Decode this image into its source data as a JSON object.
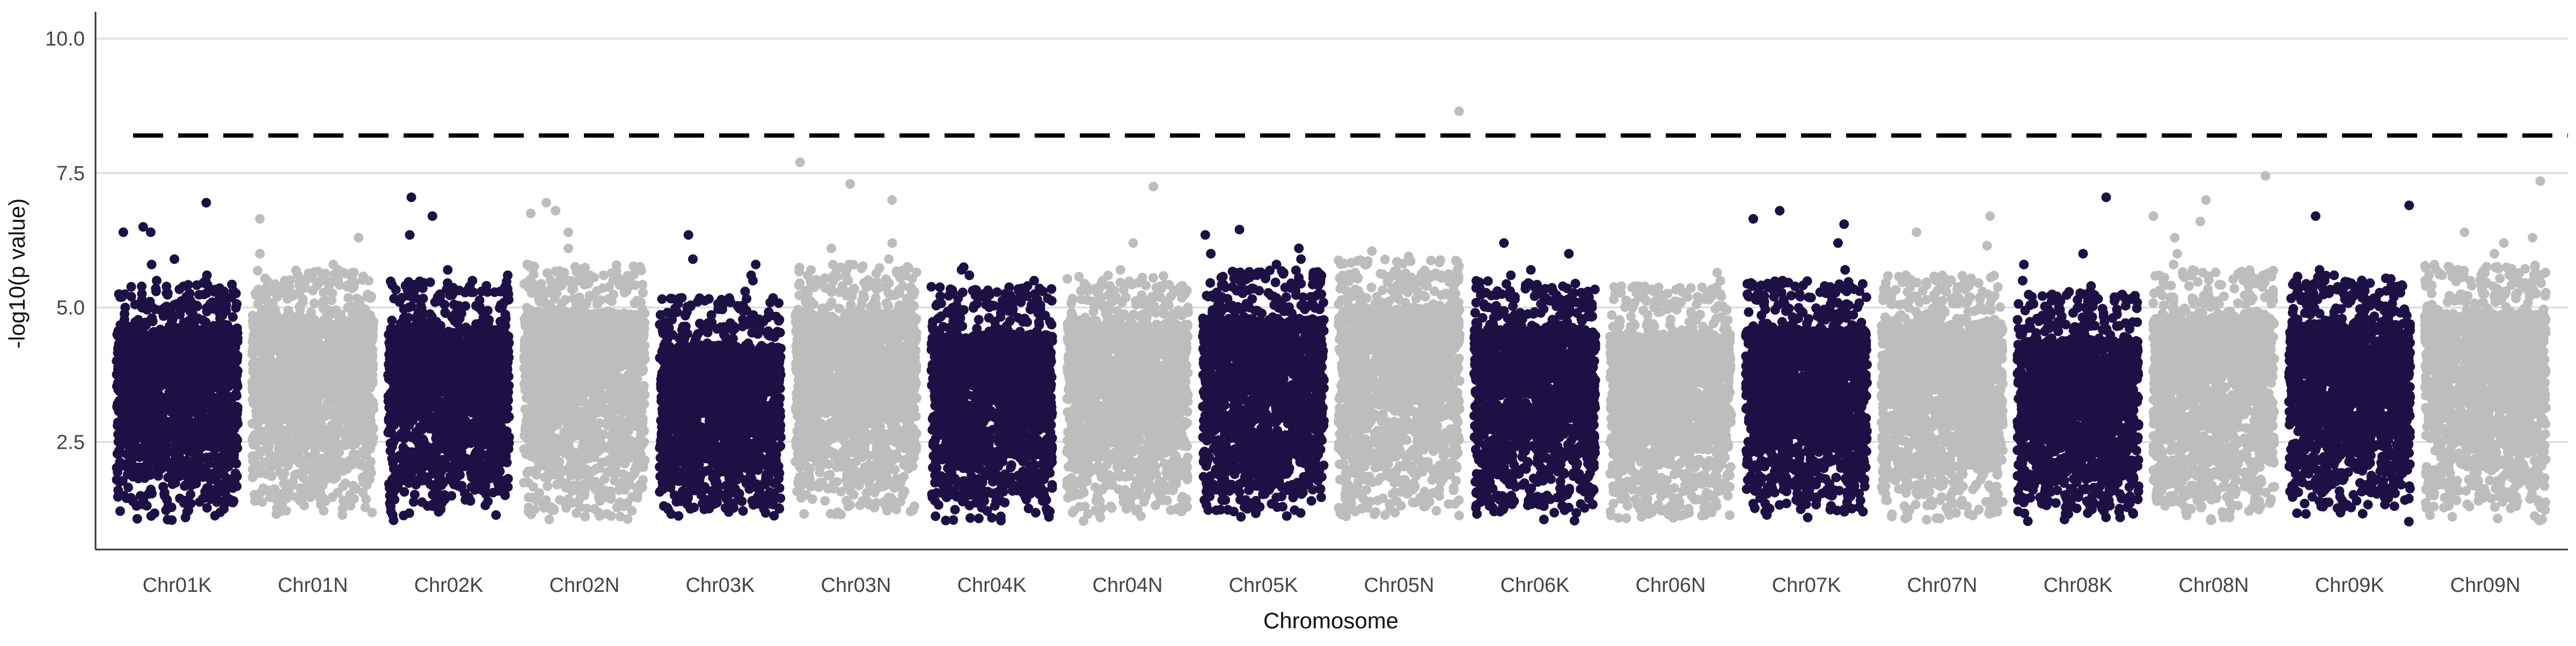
{
  "chart_data": {
    "type": "scatter",
    "subtype": "manhattan",
    "title": "",
    "xlabel": "Chromosome",
    "ylabel": "-log10(p value)",
    "ylim": [
      0.5,
      10.5
    ],
    "yticks": [
      2.5,
      5.0,
      7.5,
      10.0
    ],
    "ytick_labels": [
      "2.5",
      "5.0",
      "7.5",
      "10.0"
    ],
    "grid": "horizontal major lines",
    "legend": "none",
    "significance_threshold": 8.2,
    "threshold_line_style": "dashed black",
    "colors": {
      "K": "#1c1045",
      "N": "#bdbdbd"
    },
    "min_plotted_value": 1.0,
    "chromosomes": [
      {
        "name": "Chr01K",
        "group": "K",
        "max": 6.95,
        "upper": 4.6,
        "peaks": [
          6.95,
          6.5,
          6.4,
          6.4,
          5.9,
          5.8,
          5.6,
          5.5,
          5.3,
          5.1,
          5.0,
          5.0
        ]
      },
      {
        "name": "Chr01N",
        "group": "N",
        "max": 6.65,
        "upper": 4.8,
        "peaks": [
          6.65,
          6.3,
          6.0,
          5.8,
          5.7,
          5.5,
          5.4,
          5.2,
          5.1
        ]
      },
      {
        "name": "Chr02K",
        "group": "K",
        "max": 7.05,
        "upper": 4.6,
        "peaks": [
          7.05,
          6.7,
          6.35,
          5.7,
          5.6,
          5.5,
          5.3,
          5.1,
          5.0
        ]
      },
      {
        "name": "Chr02N",
        "group": "N",
        "max": 6.95,
        "upper": 4.9,
        "peaks": [
          6.95,
          6.8,
          6.75,
          6.4,
          6.1,
          5.8,
          5.6,
          5.5,
          5.3
        ]
      },
      {
        "name": "Chr03K",
        "group": "K",
        "max": 6.35,
        "upper": 4.3,
        "peaks": [
          6.35,
          5.9,
          5.8,
          5.6,
          5.5,
          5.3,
          5.1,
          5.0
        ]
      },
      {
        "name": "Chr03N",
        "group": "N",
        "max": 7.7,
        "upper": 4.9,
        "peaks": [
          7.7,
          7.3,
          7.0,
          6.2,
          6.1,
          5.9,
          5.8,
          5.6,
          5.4
        ]
      },
      {
        "name": "Chr04K",
        "group": "K",
        "max": 5.75,
        "upper": 4.5,
        "peaks": [
          5.75,
          5.7,
          5.6,
          5.5,
          5.4,
          5.3,
          5.2,
          5.0
        ]
      },
      {
        "name": "Chr04N",
        "group": "N",
        "max": 7.25,
        "upper": 4.7,
        "peaks": [
          7.25,
          6.2,
          5.7,
          5.5,
          5.4,
          5.2,
          5.0
        ]
      },
      {
        "name": "Chr05K",
        "group": "K",
        "max": 6.45,
        "upper": 4.8,
        "peaks": [
          6.45,
          6.35,
          6.1,
          6.0,
          5.9,
          5.8,
          5.6,
          5.5,
          5.4,
          5.2
        ]
      },
      {
        "name": "Chr05N",
        "group": "N",
        "max": 8.65,
        "upper": 5.0,
        "peaks": [
          8.65,
          6.05,
          5.95,
          5.8,
          5.7,
          5.6,
          5.5,
          5.3
        ]
      },
      {
        "name": "Chr06K",
        "group": "K",
        "max": 6.2,
        "upper": 4.6,
        "peaks": [
          6.2,
          6.0,
          5.7,
          5.6,
          5.4,
          5.2,
          5.0
        ]
      },
      {
        "name": "Chr06N",
        "group": "N",
        "max": 5.65,
        "upper": 4.5,
        "peaks": [
          5.65,
          5.5,
          5.3,
          5.2,
          5.0
        ]
      },
      {
        "name": "Chr07K",
        "group": "K",
        "max": 6.8,
        "upper": 4.6,
        "peaks": [
          6.8,
          6.65,
          6.55,
          6.2,
          5.7,
          5.5,
          5.4,
          5.2
        ]
      },
      {
        "name": "Chr07N",
        "group": "N",
        "max": 6.7,
        "upper": 4.7,
        "peaks": [
          6.7,
          6.4,
          6.15,
          5.6,
          5.5,
          5.3,
          5.1
        ]
      },
      {
        "name": "Chr08K",
        "group": "K",
        "max": 7.05,
        "upper": 4.4,
        "peaks": [
          7.05,
          6.0,
          5.8,
          5.5,
          5.4,
          5.2,
          5.0
        ]
      },
      {
        "name": "Chr08N",
        "group": "N",
        "max": 7.45,
        "upper": 4.8,
        "peaks": [
          7.45,
          7.0,
          6.7,
          6.6,
          6.3,
          6.0,
          5.8,
          5.6
        ]
      },
      {
        "name": "Chr09K",
        "group": "K",
        "max": 6.9,
        "upper": 4.7,
        "peaks": [
          6.9,
          6.7,
          5.7,
          5.6,
          5.5,
          5.4,
          5.2
        ]
      },
      {
        "name": "Chr09N",
        "group": "N",
        "max": 7.35,
        "upper": 4.9,
        "peaks": [
          7.35,
          6.4,
          6.3,
          6.2,
          6.0,
          5.7,
          5.6,
          5.5
        ]
      }
    ]
  }
}
